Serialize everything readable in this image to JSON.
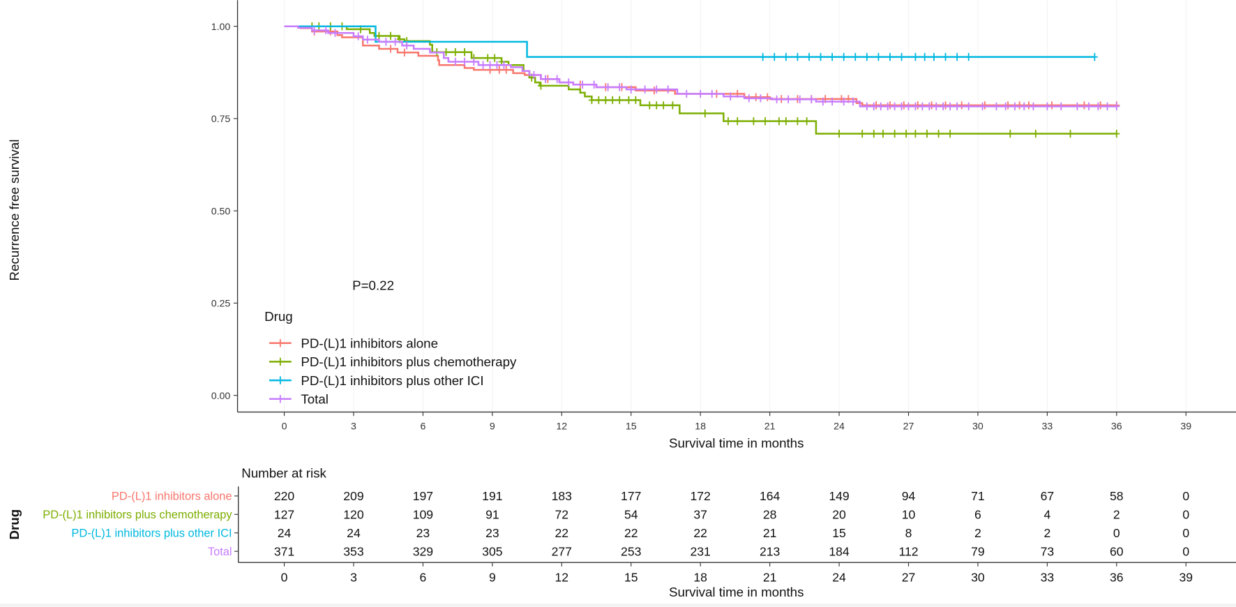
{
  "chart_data": {
    "type": "line",
    "subtype": "kaplan-meier",
    "xlabel": "Survival time in months",
    "ylabel": "Recurrence free survival",
    "xlim": [
      0,
      39
    ],
    "ylim": [
      0,
      1
    ],
    "xticks": [
      0,
      3,
      6,
      9,
      12,
      15,
      18,
      21,
      24,
      27,
      30,
      33,
      36,
      39
    ],
    "yticks": [
      "0.00",
      "0.25",
      "0.50",
      "0.75",
      "1.00"
    ],
    "grid": "faint vertical",
    "pvalue_label": "P=0.22",
    "legend": {
      "title": "Drug",
      "placement": "bottom-left inside"
    },
    "series": [
      {
        "name": "PD-(L)1 inhibitors alone",
        "color": "#F8766D",
        "end": 36,
        "steps": [
          [
            0.7,
            0.995
          ],
          [
            1.2,
            0.986
          ],
          [
            2.3,
            0.976
          ],
          [
            2.5,
            0.97
          ],
          [
            3.4,
            0.948
          ],
          [
            4.1,
            0.939
          ],
          [
            4.9,
            0.929
          ],
          [
            5.8,
            0.92
          ],
          [
            6.65,
            0.908
          ],
          [
            6.7,
            0.895
          ],
          [
            7.8,
            0.887
          ],
          [
            8.2,
            0.882
          ],
          [
            9.9,
            0.873
          ],
          [
            10.4,
            0.868
          ],
          [
            11.1,
            0.857
          ],
          [
            11.9,
            0.848
          ],
          [
            12.5,
            0.842
          ],
          [
            13.5,
            0.835
          ],
          [
            15.2,
            0.826
          ],
          [
            16.9,
            0.817
          ],
          [
            19.9,
            0.808
          ],
          [
            21.0,
            0.803
          ],
          [
            24.75,
            0.792
          ],
          [
            25.0,
            0.786
          ]
        ],
        "censored": [
          1.3,
          2.0,
          4.6,
          5.2,
          8.9,
          9.3,
          9.6,
          11.4,
          12.8,
          13.9,
          14.6,
          16.0,
          18.7,
          19.6,
          20.4,
          20.9,
          21.5,
          22.2,
          22.8,
          23.4,
          24.1,
          24.4,
          25.6,
          26.2,
          26.8,
          27.4,
          28.0,
          28.6,
          29.3,
          30.3,
          31.3,
          31.8,
          32.2,
          33.2,
          34.6,
          35.3,
          36.0
        ]
      },
      {
        "name": "PD-(L)1 inhibitors plus chemotherapy",
        "color": "#7CAE00",
        "end": 36,
        "steps": [
          [
            2.7,
            0.992
          ],
          [
            3.7,
            0.982
          ],
          [
            3.9,
            0.974
          ],
          [
            4.95,
            0.965
          ],
          [
            5.2,
            0.96
          ],
          [
            6.3,
            0.95
          ],
          [
            6.4,
            0.93
          ],
          [
            8.1,
            0.914
          ],
          [
            9.4,
            0.904
          ],
          [
            9.7,
            0.895
          ],
          [
            10.35,
            0.879
          ],
          [
            10.6,
            0.861
          ],
          [
            10.85,
            0.848
          ],
          [
            11.05,
            0.839
          ],
          [
            12.3,
            0.829
          ],
          [
            12.8,
            0.82
          ],
          [
            13.0,
            0.81
          ],
          [
            13.3,
            0.8
          ],
          [
            15.4,
            0.786
          ],
          [
            17.1,
            0.764
          ],
          [
            19.0,
            0.743
          ],
          [
            23.0,
            0.709
          ]
        ],
        "censored": [
          1.2,
          1.5,
          2.0,
          2.5,
          3.3,
          4.1,
          4.6,
          5.0,
          5.3,
          6.6,
          7.0,
          7.4,
          7.8,
          8.2,
          8.8,
          9.1,
          9.4,
          10.7,
          11.1,
          13.3,
          13.6,
          13.9,
          14.2,
          14.5,
          14.9,
          15.2,
          15.8,
          16.1,
          16.4,
          16.8,
          18.2,
          19.2,
          19.6,
          20.3,
          20.8,
          21.4,
          21.7,
          22.2,
          22.6,
          24.0,
          25.0,
          25.5,
          25.9,
          26.4,
          26.9,
          27.3,
          27.8,
          28.3,
          28.8,
          31.4,
          32.5,
          34.0,
          36.0
        ]
      },
      {
        "name": "PD-(L)1 inhibitors plus other ICI",
        "color": "#00B8E0",
        "end": 35.05,
        "steps": [
          [
            3.95,
            0.958
          ],
          [
            10.5,
            0.917
          ]
        ],
        "censored": [
          20.7,
          21.2,
          21.7,
          22.2,
          22.7,
          23.2,
          23.7,
          24.2,
          24.7,
          25.2,
          25.7,
          26.2,
          26.7,
          27.3,
          27.7,
          28.1,
          28.6,
          29.1,
          29.6,
          35.05
        ]
      },
      {
        "name": "Total",
        "color": "#C77CFF",
        "end": 36,
        "steps": [
          [
            0.6,
            0.996
          ],
          [
            1.2,
            0.989
          ],
          [
            1.9,
            0.982
          ],
          [
            3.0,
            0.973
          ],
          [
            3.4,
            0.964
          ],
          [
            4.1,
            0.958
          ],
          [
            5.1,
            0.948
          ],
          [
            5.6,
            0.939
          ],
          [
            6.3,
            0.929
          ],
          [
            6.9,
            0.914
          ],
          [
            7.1,
            0.904
          ],
          [
            8.4,
            0.895
          ],
          [
            9.8,
            0.889
          ],
          [
            10.3,
            0.879
          ],
          [
            10.6,
            0.868
          ],
          [
            11.1,
            0.857
          ],
          [
            11.9,
            0.848
          ],
          [
            12.5,
            0.842
          ],
          [
            13.5,
            0.835
          ],
          [
            14.8,
            0.829
          ],
          [
            17.0,
            0.817
          ],
          [
            19.0,
            0.81
          ],
          [
            19.9,
            0.805
          ],
          [
            21.1,
            0.802
          ],
          [
            23.0,
            0.796
          ],
          [
            24.9,
            0.783
          ]
        ],
        "censored": [
          1.3,
          1.8,
          2.2,
          3.2,
          3.6,
          4.4,
          4.8,
          5.3,
          7.4,
          7.8,
          8.2,
          8.6,
          8.9,
          9.2,
          9.5,
          10.8,
          11.3,
          11.8,
          12.3,
          12.9,
          13.4,
          14.0,
          14.5,
          15.0,
          15.6,
          16.1,
          16.6,
          17.4,
          18.0,
          18.5,
          19.3,
          20.1,
          20.6,
          21.3,
          21.8,
          22.3,
          22.8,
          23.3,
          23.7,
          24.2,
          24.6,
          25.2,
          25.5,
          25.8,
          26.1,
          26.4,
          26.7,
          27.0,
          27.3,
          27.6,
          27.9,
          28.2,
          28.5,
          28.8,
          29.1,
          29.6,
          30.2,
          30.8,
          31.2,
          31.6,
          32.0,
          32.4,
          33.0,
          33.6,
          34.3,
          34.8,
          35.2,
          35.6,
          36.0
        ]
      }
    ],
    "risk_table": {
      "title": "Number at risk",
      "ylabel": "Drug",
      "xlabel": "Survival time in months",
      "times": [
        0,
        3,
        6,
        9,
        12,
        15,
        18,
        21,
        24,
        27,
        30,
        33,
        36,
        39
      ],
      "rows": [
        {
          "label": "PD-(L)1 inhibitors alone",
          "color": "#F8766D",
          "values": [
            220,
            209,
            197,
            191,
            183,
            177,
            172,
            164,
            149,
            94,
            71,
            67,
            58,
            0
          ]
        },
        {
          "label": "PD-(L)1 inhibitors plus chemotherapy",
          "color": "#7CAE00",
          "values": [
            127,
            120,
            109,
            91,
            72,
            54,
            37,
            28,
            20,
            10,
            6,
            4,
            2,
            0
          ]
        },
        {
          "label": "PD-(L)1 inhibitors plus other ICI",
          "color": "#00B8E0",
          "values": [
            24,
            24,
            23,
            23,
            22,
            22,
            22,
            21,
            15,
            8,
            2,
            2,
            0,
            0
          ]
        },
        {
          "label": "Total",
          "color": "#C77CFF",
          "values": [
            371,
            353,
            329,
            305,
            277,
            253,
            231,
            213,
            184,
            112,
            79,
            73,
            60,
            0
          ]
        }
      ]
    }
  }
}
